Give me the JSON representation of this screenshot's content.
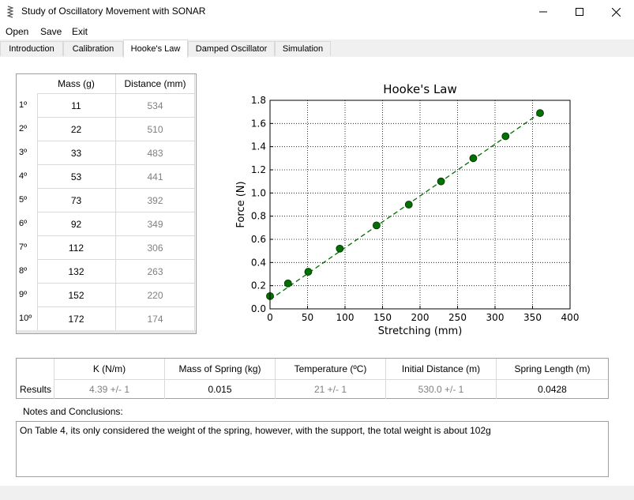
{
  "window": {
    "title": "Study of Oscillatory Movement with SONAR"
  },
  "menu": [
    "Open",
    "Save",
    "Exit"
  ],
  "tabs": [
    "Introduction",
    "Calibration",
    "Hooke's Law",
    "Damped Oscillator",
    "Simulation"
  ],
  "active_tab": "Hooke's Law",
  "data_table": {
    "headers": [
      "Mass (g)",
      "Distance (mm)"
    ],
    "rows": [
      {
        "label": "1º",
        "mass": "11",
        "distance": "534"
      },
      {
        "label": "2º",
        "mass": "22",
        "distance": "510"
      },
      {
        "label": "3º",
        "mass": "33",
        "distance": "483"
      },
      {
        "label": "4º",
        "mass": "53",
        "distance": "441"
      },
      {
        "label": "5º",
        "mass": "73",
        "distance": "392"
      },
      {
        "label": "6º",
        "mass": "92",
        "distance": "349"
      },
      {
        "label": "7º",
        "mass": "112",
        "distance": "306"
      },
      {
        "label": "8º",
        "mass": "132",
        "distance": "263"
      },
      {
        "label": "9º",
        "mass": "152",
        "distance": "220"
      },
      {
        "label": "10º",
        "mass": "172",
        "distance": "174"
      }
    ]
  },
  "chart_data": {
    "type": "scatter",
    "title": "Hooke's Law",
    "xlabel": "Stretching (mm)",
    "ylabel": "Force (N)",
    "xlim": [
      0,
      400
    ],
    "ylim": [
      0,
      1.8
    ],
    "xticks": [
      "0",
      "50",
      "100",
      "150",
      "200",
      "250",
      "300",
      "350",
      "400"
    ],
    "yticks": [
      "0.0",
      "0.2",
      "0.4",
      "0.6",
      "0.8",
      "1.0",
      "1.2",
      "1.4",
      "1.6",
      "1.8"
    ],
    "grid": true,
    "series": [
      {
        "marker_color": "#007000",
        "points": [
          [
            0,
            0.11
          ],
          [
            24,
            0.22
          ],
          [
            51,
            0.32
          ],
          [
            93,
            0.52
          ],
          [
            142,
            0.72
          ],
          [
            185,
            0.9
          ],
          [
            228,
            1.1
          ],
          [
            271,
            1.3
          ],
          [
            314,
            1.49
          ],
          [
            360,
            1.69
          ]
        ]
      }
    ],
    "fit_line": {
      "style": "dashed",
      "color": "#007000",
      "from": [
        0,
        0.08
      ],
      "to": [
        360,
        1.69
      ]
    }
  },
  "results": {
    "row_label": "Results",
    "columns": [
      {
        "header": "K (N/m)",
        "value": "4.39 +/- 1",
        "muted": true
      },
      {
        "header": "Mass of Spring (kg)",
        "value": "0.015",
        "muted": false
      },
      {
        "header": "Temperature (ºC)",
        "value": "21 +/- 1",
        "muted": true
      },
      {
        "header": "Initial Distance (m)",
        "value": "530.0 +/- 1",
        "muted": true
      },
      {
        "header": "Spring Length (m)",
        "value": "0.0428",
        "muted": false
      }
    ]
  },
  "notes": {
    "label": "Notes and Conclusions:",
    "text": "On Table 4, its only considered the weight of the spring, however, with the support, the total weight is about 102g"
  }
}
